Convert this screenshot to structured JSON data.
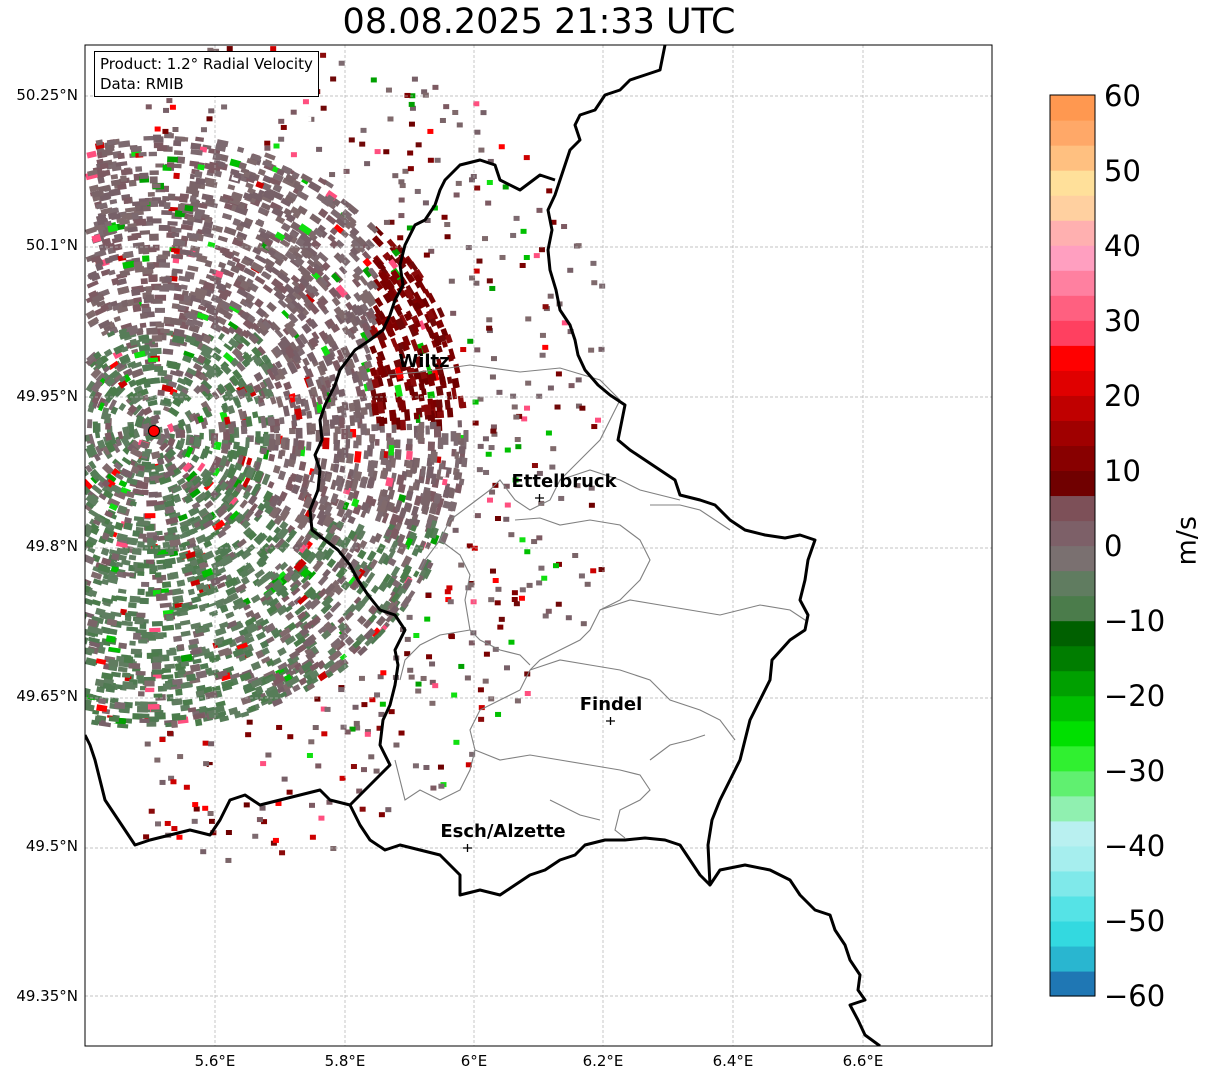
{
  "title": "08.08.2025 21:33 UTC",
  "info": {
    "product": "Product: 1.2° Radial Velocity",
    "data": "Data: RMIB"
  },
  "lat_labels": [
    "50.25°N",
    "50.1°N",
    "49.95°N",
    "49.8°N",
    "49.65°N",
    "49.5°N",
    "49.35°N"
  ],
  "lon_labels": [
    "5.6°E",
    "5.8°E",
    "6°E",
    "6.2°E",
    "6.4°E",
    "6.6°E"
  ],
  "cities": [
    {
      "name": "Wiltz"
    },
    {
      "name": "Ettelbruck"
    },
    {
      "name": "Findel"
    },
    {
      "name": "Esch/Alzette"
    }
  ],
  "colorbar": {
    "unit": "m/s",
    "ticks": [
      "60",
      "50",
      "40",
      "30",
      "20",
      "10",
      "0",
      "−10",
      "−20",
      "−30",
      "−40",
      "−50",
      "−60"
    ],
    "colors": [
      "#1f77b4",
      "#29b6d0",
      "#33d9e0",
      "#55e3e6",
      "#7fe9ea",
      "#a6eeee",
      "#b9f0f0",
      "#90f0b0",
      "#60f070",
      "#30f030",
      "#00e000",
      "#00c000",
      "#00a000",
      "#007d00",
      "#006000",
      "#4b7c4b",
      "#607c60",
      "#7a7070",
      "#7d6068",
      "#7d5058",
      "#700000",
      "#880000",
      "#a00000",
      "#c00000",
      "#e00000",
      "#ff0000",
      "#ff4060",
      "#ff6080",
      "#ff80a0",
      "#ff9fc0",
      "#ffb0b0",
      "#ffd0a0",
      "#ffe09a",
      "#ffc080",
      "#ffa868",
      "#ff9850"
    ],
    "vmin": -60,
    "vmax": 60
  },
  "radar": {
    "symbol": "red-circle"
  }
}
